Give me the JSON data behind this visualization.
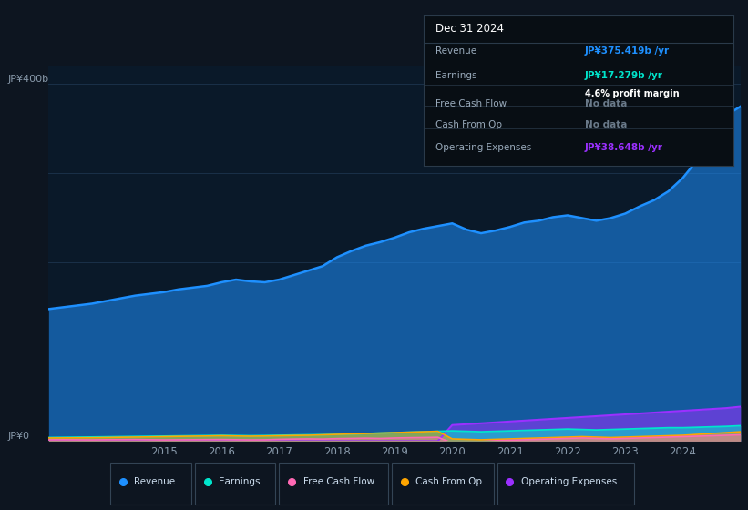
{
  "bg_color": "#0d1520",
  "plot_bg_color": "#0a1929",
  "grid_color": "#1a3048",
  "years": [
    2013.0,
    2013.25,
    2013.5,
    2013.75,
    2014.0,
    2014.25,
    2014.5,
    2014.75,
    2015.0,
    2015.25,
    2015.5,
    2015.75,
    2016.0,
    2016.25,
    2016.5,
    2016.75,
    2017.0,
    2017.25,
    2017.5,
    2017.75,
    2018.0,
    2018.25,
    2018.5,
    2018.75,
    2019.0,
    2019.25,
    2019.5,
    2019.75,
    2020.0,
    2020.25,
    2020.5,
    2020.75,
    2021.0,
    2021.25,
    2021.5,
    2021.75,
    2022.0,
    2022.25,
    2022.5,
    2022.75,
    2023.0,
    2023.25,
    2023.5,
    2023.75,
    2024.0,
    2024.25,
    2024.5,
    2024.75,
    2025.0
  ],
  "revenue": [
    148,
    150,
    152,
    154,
    157,
    160,
    163,
    165,
    167,
    170,
    172,
    174,
    178,
    181,
    179,
    178,
    181,
    186,
    191,
    196,
    206,
    213,
    219,
    223,
    228,
    234,
    238,
    241,
    244,
    237,
    233,
    236,
    240,
    245,
    247,
    251,
    253,
    250,
    247,
    250,
    255,
    263,
    270,
    280,
    295,
    315,
    340,
    365,
    375
  ],
  "earnings": [
    4,
    4.2,
    4.4,
    4.6,
    4.8,
    5.0,
    5.2,
    5.4,
    5.6,
    5.8,
    6.0,
    6.2,
    6.4,
    6.2,
    6.0,
    6.2,
    6.5,
    6.8,
    7.0,
    7.2,
    7.5,
    8.0,
    8.5,
    9.0,
    9.5,
    10.0,
    10.5,
    11.0,
    11.5,
    11.0,
    10.5,
    11.0,
    11.5,
    12.0,
    12.5,
    13.0,
    13.5,
    13.0,
    12.5,
    13.0,
    13.5,
    14.0,
    14.5,
    15.0,
    15.0,
    15.5,
    16.0,
    16.5,
    17.279
  ],
  "free_cash_flow": [
    1.5,
    1.6,
    1.5,
    1.4,
    1.6,
    1.7,
    1.8,
    1.6,
    1.4,
    1.5,
    1.6,
    1.7,
    1.8,
    1.6,
    1.4,
    1.5,
    2.0,
    2.3,
    2.5,
    2.3,
    2.8,
    3.0,
    3.3,
    3.0,
    3.5,
    3.8,
    4.0,
    4.3,
    -2,
    -1.5,
    -0.5,
    0.5,
    1.0,
    1.5,
    2.0,
    2.5,
    3.0,
    3.5,
    3.0,
    2.5,
    3.0,
    3.5,
    4.0,
    4.5,
    5.0,
    5.5,
    6.0,
    6.5,
    7.0
  ],
  "cash_from_op": [
    3.5,
    3.6,
    3.7,
    3.8,
    4.0,
    4.3,
    4.5,
    4.7,
    5.0,
    5.3,
    5.5,
    5.7,
    6.0,
    5.7,
    5.5,
    5.7,
    6.0,
    6.3,
    6.5,
    7.0,
    7.5,
    8.0,
    8.5,
    9.0,
    9.5,
    10.0,
    10.5,
    11.0,
    2.5,
    2.0,
    1.5,
    2.0,
    2.5,
    3.0,
    3.5,
    4.0,
    4.5,
    5.0,
    4.5,
    4.0,
    4.5,
    5.0,
    5.5,
    6.0,
    6.5,
    7.5,
    8.5,
    9.5,
    10.5
  ],
  "operating_expenses": [
    0,
    0,
    0,
    0,
    0,
    0,
    0,
    0,
    0,
    0,
    0,
    0,
    0,
    0,
    0,
    0,
    0,
    0,
    0,
    0,
    0,
    0,
    0,
    0,
    0,
    0,
    0,
    0,
    18,
    19,
    20,
    21,
    22,
    23,
    24,
    25,
    26,
    27,
    28,
    29,
    30,
    31,
    32,
    33,
    34,
    35,
    36,
    37,
    38.648
  ],
  "revenue_color": "#1e90ff",
  "earnings_color": "#00e5cc",
  "free_cash_flow_color": "#ff69b4",
  "cash_from_op_color": "#ffa500",
  "operating_expenses_color": "#9b30ff",
  "ylim": [
    0,
    420
  ],
  "ytick_labels": [
    "JP¥0",
    "JP¥400b"
  ],
  "xticks": [
    2015,
    2016,
    2017,
    2018,
    2019,
    2020,
    2021,
    2022,
    2023,
    2024
  ],
  "info_box": {
    "date": "Dec 31 2024",
    "revenue_label": "Revenue",
    "revenue_value": "JP¥375.419b /yr",
    "earnings_label": "Earnings",
    "earnings_value": "JP¥17.279b /yr",
    "margin_text": "4.6% profit margin",
    "fcf_label": "Free Cash Flow",
    "fcf_value": "No data",
    "cfop_label": "Cash From Op",
    "cfop_value": "No data",
    "opex_label": "Operating Expenses",
    "opex_value": "JP¥38.648b /yr"
  },
  "legend_items": [
    {
      "label": "Revenue",
      "color": "#1e90ff"
    },
    {
      "label": "Earnings",
      "color": "#00e5cc"
    },
    {
      "label": "Free Cash Flow",
      "color": "#ff69b4"
    },
    {
      "label": "Cash From Op",
      "color": "#ffa500"
    },
    {
      "label": "Operating Expenses",
      "color": "#9b30ff"
    }
  ]
}
